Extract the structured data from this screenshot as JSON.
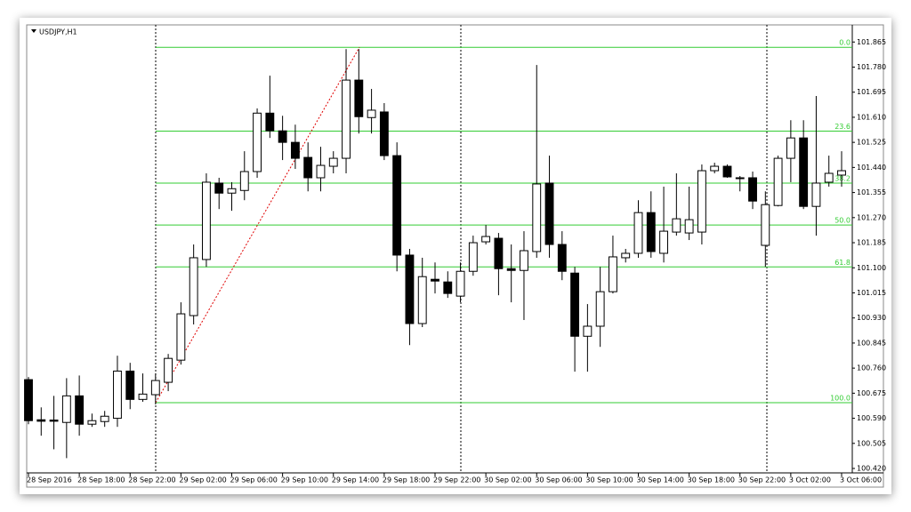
{
  "chart_data": {
    "type": "candlestick",
    "title": "USDJPY,H1",
    "categories": [
      "28 Sep 2016",
      null,
      null,
      null,
      "28 Sep 18:00",
      null,
      null,
      null,
      "28 Sep 22:00",
      null,
      null,
      null,
      "29 Sep 02:00",
      null,
      null,
      null,
      "29 Sep 06:00",
      null,
      null,
      null,
      "29 Sep 10:00",
      null,
      null,
      null,
      "29 Sep 14:00",
      null,
      null,
      null,
      "29 Sep 18:00",
      null,
      null,
      null,
      "29 Sep 22:00",
      null,
      null,
      null,
      "30 Sep 02:00",
      null,
      null,
      null,
      "30 Sep 06:00",
      null,
      null,
      null,
      "30 Sep 10:00",
      null,
      null,
      null,
      "30 Sep 14:00",
      null,
      null,
      null,
      "30 Sep 18:00",
      null,
      null,
      null,
      "30 Sep 22:00",
      null,
      null,
      null,
      "3 Oct 02:00",
      null,
      null,
      null,
      "3 Oct 06:00"
    ],
    "open": [
      100.721,
      100.585,
      100.584,
      100.576,
      100.666,
      100.57,
      100.579,
      100.59,
      100.75,
      100.654,
      100.67,
      100.712,
      100.787,
      100.938,
      101.128,
      101.387,
      101.353,
      101.362,
      101.426,
      101.624,
      101.564,
      101.525,
      101.474,
      101.405,
      101.444,
      101.471,
      101.736,
      101.609,
      101.628,
      101.48,
      101.143,
      100.911,
      101.061,
      101.052,
      101.004,
      101.088,
      101.188,
      101.2,
      101.097,
      101.091,
      101.155,
      101.387,
      101.179,
      101.082,
      100.868,
      100.902,
      101.019,
      101.134,
      101.149,
      101.287,
      101.149,
      101.221,
      101.218,
      101.221,
      101.429,
      101.444,
      101.405,
      101.405,
      101.176,
      101.311,
      101.471,
      101.54,
      101.308,
      101.39,
      101.414
    ],
    "high": [
      100.73,
      100.627,
      100.666,
      100.726,
      100.735,
      100.606,
      100.615,
      100.802,
      100.778,
      100.742,
      100.742,
      100.808,
      100.983,
      101.179,
      101.42,
      101.405,
      101.39,
      101.495,
      101.64,
      101.751,
      101.615,
      101.585,
      101.525,
      101.51,
      101.495,
      101.841,
      101.841,
      101.706,
      101.658,
      101.525,
      101.164,
      101.134,
      101.118,
      101.088,
      101.118,
      101.209,
      101.245,
      101.218,
      101.179,
      101.224,
      101.787,
      101.48,
      101.224,
      101.103,
      100.977,
      101.103,
      101.209,
      101.164,
      101.329,
      101.359,
      101.375,
      101.42,
      101.375,
      101.45,
      101.456,
      101.45,
      101.411,
      101.426,
      101.359,
      101.48,
      101.6,
      101.6,
      101.682,
      101.48,
      101.495
    ],
    "low": [
      100.57,
      100.531,
      100.485,
      100.455,
      100.531,
      100.561,
      100.561,
      100.561,
      100.621,
      100.646,
      100.637,
      100.682,
      100.772,
      100.908,
      101.103,
      101.299,
      101.293,
      101.329,
      101.405,
      101.54,
      101.465,
      101.435,
      101.359,
      101.359,
      101.42,
      101.42,
      101.555,
      101.555,
      101.465,
      101.088,
      100.838,
      100.899,
      101.013,
      100.998,
      100.983,
      101.073,
      101.179,
      101.007,
      100.983,
      100.923,
      101.134,
      101.134,
      101.058,
      100.748,
      100.748,
      100.832,
      101.013,
      101.118,
      101.134,
      101.134,
      101.118,
      101.209,
      101.194,
      101.179,
      101.42,
      101.405,
      101.359,
      101.299,
      101.103,
      101.308,
      101.39,
      101.299,
      101.209,
      101.375,
      101.375
    ],
    "close": [
      100.582,
      100.58,
      100.58,
      100.666,
      100.57,
      100.582,
      100.597,
      100.75,
      100.654,
      100.672,
      100.718,
      100.793,
      100.944,
      101.134,
      101.39,
      101.353,
      101.368,
      101.426,
      101.624,
      101.564,
      101.525,
      101.471,
      101.405,
      101.447,
      101.471,
      101.736,
      101.612,
      101.634,
      101.48,
      101.143,
      100.911,
      101.07,
      101.055,
      101.013,
      101.088,
      101.185,
      101.206,
      101.097,
      101.091,
      101.158,
      101.384,
      101.179,
      101.088,
      100.868,
      100.902,
      101.019,
      101.137,
      101.149,
      101.287,
      101.155,
      101.224,
      101.266,
      101.263,
      101.429,
      101.444,
      101.408,
      101.402,
      101.326,
      101.314,
      101.471,
      101.54,
      101.308,
      101.387,
      101.42,
      101.429
    ],
    "ylim": [
      100.405,
      101.917
    ],
    "yticks": [
      101.865,
      {
        "value": 101.78,
        "label": "101.780"
      },
      101.695,
      {
        "value": 101.61,
        "label": "101.610"
      },
      101.525,
      {
        "value": 101.44,
        "label": "101.440"
      },
      101.355,
      {
        "value": 101.27,
        "label": "101.270"
      },
      101.185,
      {
        "value": 101.1,
        "label": "101.100"
      },
      101.015,
      {
        "value": 100.93,
        "label": "100.930"
      },
      100.845,
      {
        "value": 100.76,
        "label": "100.760"
      },
      100.675,
      {
        "value": 100.59,
        "label": "100.590"
      },
      100.505,
      {
        "value": 100.42,
        "label": "100.420"
      }
    ],
    "fibo_levels": [
      {
        "label": "0.0",
        "value": 101.847
      },
      {
        "label": "23.6",
        "value": 101.563
      },
      {
        "label": "38.2",
        "value": 101.387
      },
      {
        "label": "50.0",
        "value": 101.245
      },
      {
        "label": "61.8",
        "value": 101.103
      },
      {
        "label": "100.0",
        "value": 100.643
      }
    ],
    "fibo_color": "#33cc33",
    "trend_color": "#e00000"
  }
}
